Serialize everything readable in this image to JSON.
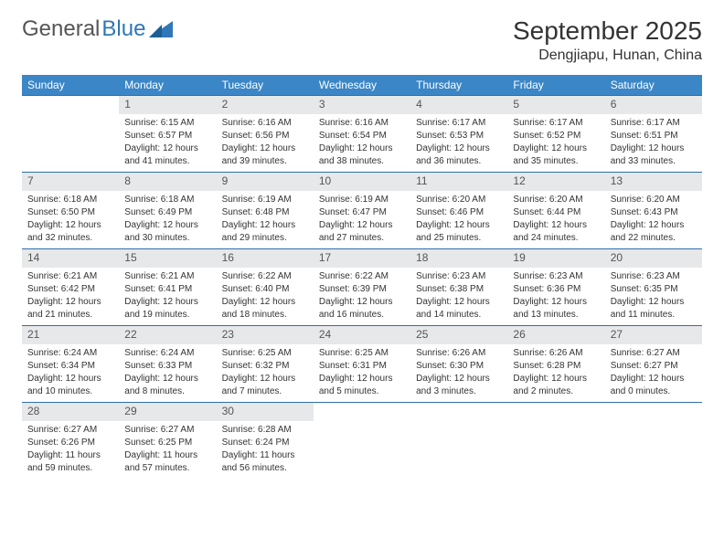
{
  "brand": {
    "part1": "General",
    "part2": "Blue"
  },
  "title": "September 2025",
  "location": "Dengjiapu, Hunan, China",
  "colors": {
    "header_bg": "#3b86c6",
    "header_text": "#ffffff",
    "daynum_bg": "#e7e8e9",
    "row_border": "#2f6fa8",
    "brand_accent": "#2f77b7"
  },
  "weekdays": [
    "Sunday",
    "Monday",
    "Tuesday",
    "Wednesday",
    "Thursday",
    "Friday",
    "Saturday"
  ],
  "weeks": [
    [
      null,
      {
        "n": "1",
        "sr": "Sunrise: 6:15 AM",
        "ss": "Sunset: 6:57 PM",
        "d1": "Daylight: 12 hours",
        "d2": "and 41 minutes."
      },
      {
        "n": "2",
        "sr": "Sunrise: 6:16 AM",
        "ss": "Sunset: 6:56 PM",
        "d1": "Daylight: 12 hours",
        "d2": "and 39 minutes."
      },
      {
        "n": "3",
        "sr": "Sunrise: 6:16 AM",
        "ss": "Sunset: 6:54 PM",
        "d1": "Daylight: 12 hours",
        "d2": "and 38 minutes."
      },
      {
        "n": "4",
        "sr": "Sunrise: 6:17 AM",
        "ss": "Sunset: 6:53 PM",
        "d1": "Daylight: 12 hours",
        "d2": "and 36 minutes."
      },
      {
        "n": "5",
        "sr": "Sunrise: 6:17 AM",
        "ss": "Sunset: 6:52 PM",
        "d1": "Daylight: 12 hours",
        "d2": "and 35 minutes."
      },
      {
        "n": "6",
        "sr": "Sunrise: 6:17 AM",
        "ss": "Sunset: 6:51 PM",
        "d1": "Daylight: 12 hours",
        "d2": "and 33 minutes."
      }
    ],
    [
      {
        "n": "7",
        "sr": "Sunrise: 6:18 AM",
        "ss": "Sunset: 6:50 PM",
        "d1": "Daylight: 12 hours",
        "d2": "and 32 minutes."
      },
      {
        "n": "8",
        "sr": "Sunrise: 6:18 AM",
        "ss": "Sunset: 6:49 PM",
        "d1": "Daylight: 12 hours",
        "d2": "and 30 minutes."
      },
      {
        "n": "9",
        "sr": "Sunrise: 6:19 AM",
        "ss": "Sunset: 6:48 PM",
        "d1": "Daylight: 12 hours",
        "d2": "and 29 minutes."
      },
      {
        "n": "10",
        "sr": "Sunrise: 6:19 AM",
        "ss": "Sunset: 6:47 PM",
        "d1": "Daylight: 12 hours",
        "d2": "and 27 minutes."
      },
      {
        "n": "11",
        "sr": "Sunrise: 6:20 AM",
        "ss": "Sunset: 6:46 PM",
        "d1": "Daylight: 12 hours",
        "d2": "and 25 minutes."
      },
      {
        "n": "12",
        "sr": "Sunrise: 6:20 AM",
        "ss": "Sunset: 6:44 PM",
        "d1": "Daylight: 12 hours",
        "d2": "and 24 minutes."
      },
      {
        "n": "13",
        "sr": "Sunrise: 6:20 AM",
        "ss": "Sunset: 6:43 PM",
        "d1": "Daylight: 12 hours",
        "d2": "and 22 minutes."
      }
    ],
    [
      {
        "n": "14",
        "sr": "Sunrise: 6:21 AM",
        "ss": "Sunset: 6:42 PM",
        "d1": "Daylight: 12 hours",
        "d2": "and 21 minutes."
      },
      {
        "n": "15",
        "sr": "Sunrise: 6:21 AM",
        "ss": "Sunset: 6:41 PM",
        "d1": "Daylight: 12 hours",
        "d2": "and 19 minutes."
      },
      {
        "n": "16",
        "sr": "Sunrise: 6:22 AM",
        "ss": "Sunset: 6:40 PM",
        "d1": "Daylight: 12 hours",
        "d2": "and 18 minutes."
      },
      {
        "n": "17",
        "sr": "Sunrise: 6:22 AM",
        "ss": "Sunset: 6:39 PM",
        "d1": "Daylight: 12 hours",
        "d2": "and 16 minutes."
      },
      {
        "n": "18",
        "sr": "Sunrise: 6:23 AM",
        "ss": "Sunset: 6:38 PM",
        "d1": "Daylight: 12 hours",
        "d2": "and 14 minutes."
      },
      {
        "n": "19",
        "sr": "Sunrise: 6:23 AM",
        "ss": "Sunset: 6:36 PM",
        "d1": "Daylight: 12 hours",
        "d2": "and 13 minutes."
      },
      {
        "n": "20",
        "sr": "Sunrise: 6:23 AM",
        "ss": "Sunset: 6:35 PM",
        "d1": "Daylight: 12 hours",
        "d2": "and 11 minutes."
      }
    ],
    [
      {
        "n": "21",
        "sr": "Sunrise: 6:24 AM",
        "ss": "Sunset: 6:34 PM",
        "d1": "Daylight: 12 hours",
        "d2": "and 10 minutes."
      },
      {
        "n": "22",
        "sr": "Sunrise: 6:24 AM",
        "ss": "Sunset: 6:33 PM",
        "d1": "Daylight: 12 hours",
        "d2": "and 8 minutes."
      },
      {
        "n": "23",
        "sr": "Sunrise: 6:25 AM",
        "ss": "Sunset: 6:32 PM",
        "d1": "Daylight: 12 hours",
        "d2": "and 7 minutes."
      },
      {
        "n": "24",
        "sr": "Sunrise: 6:25 AM",
        "ss": "Sunset: 6:31 PM",
        "d1": "Daylight: 12 hours",
        "d2": "and 5 minutes."
      },
      {
        "n": "25",
        "sr": "Sunrise: 6:26 AM",
        "ss": "Sunset: 6:30 PM",
        "d1": "Daylight: 12 hours",
        "d2": "and 3 minutes."
      },
      {
        "n": "26",
        "sr": "Sunrise: 6:26 AM",
        "ss": "Sunset: 6:28 PM",
        "d1": "Daylight: 12 hours",
        "d2": "and 2 minutes."
      },
      {
        "n": "27",
        "sr": "Sunrise: 6:27 AM",
        "ss": "Sunset: 6:27 PM",
        "d1": "Daylight: 12 hours",
        "d2": "and 0 minutes."
      }
    ],
    [
      {
        "n": "28",
        "sr": "Sunrise: 6:27 AM",
        "ss": "Sunset: 6:26 PM",
        "d1": "Daylight: 11 hours",
        "d2": "and 59 minutes."
      },
      {
        "n": "29",
        "sr": "Sunrise: 6:27 AM",
        "ss": "Sunset: 6:25 PM",
        "d1": "Daylight: 11 hours",
        "d2": "and 57 minutes."
      },
      {
        "n": "30",
        "sr": "Sunrise: 6:28 AM",
        "ss": "Sunset: 6:24 PM",
        "d1": "Daylight: 11 hours",
        "d2": "and 56 minutes."
      },
      null,
      null,
      null,
      null
    ]
  ]
}
